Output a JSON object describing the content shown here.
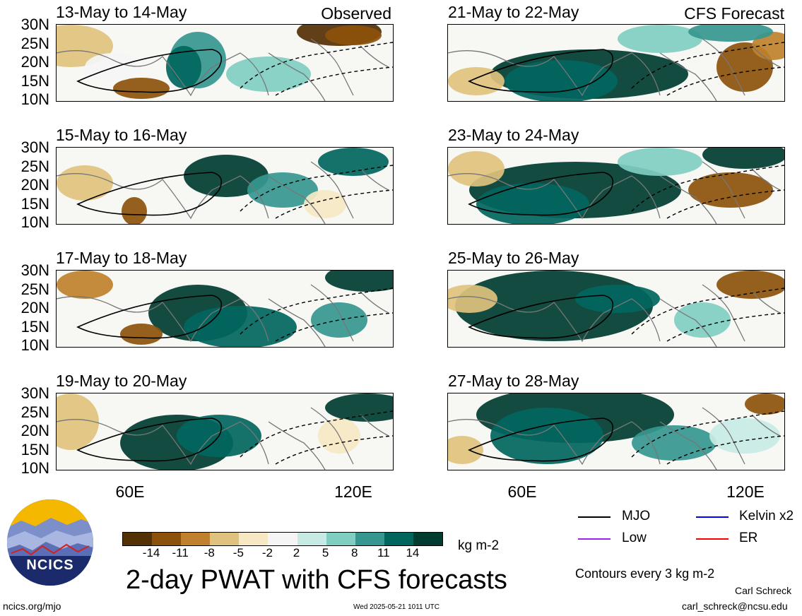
{
  "panels": [
    {
      "title": "13-May to 14-May",
      "tag": "Observed"
    },
    {
      "title": "21-May to 22-May",
      "tag": "CFS Forecast"
    },
    {
      "title": "15-May to 16-May",
      "tag": ""
    },
    {
      "title": "23-May to 24-May",
      "tag": ""
    },
    {
      "title": "17-May to 18-May",
      "tag": ""
    },
    {
      "title": "25-May to 26-May",
      "tag": ""
    },
    {
      "title": "19-May to 20-May",
      "tag": ""
    },
    {
      "title": "27-May to 28-May",
      "tag": ""
    }
  ],
  "y_ticks": [
    "30N",
    "25N",
    "20N",
    "15N",
    "10N"
  ],
  "x_ticks": [
    "60E",
    "120E"
  ],
  "colorbar": {
    "labels": [
      "-14",
      "-11",
      "-8",
      "-5",
      "-2",
      "2",
      "5",
      "8",
      "11",
      "14"
    ],
    "colors": [
      "#543005",
      "#8c510a",
      "#bf812d",
      "#dfc27d",
      "#f6e8c3",
      "#f5f5f5",
      "#c7eae5",
      "#80cdc1",
      "#35978f",
      "#01665e",
      "#003c30"
    ],
    "units": "kg m-2"
  },
  "title": "2-day PWAT with CFS forecasts",
  "legend": [
    {
      "label": "MJO",
      "color": "#000000"
    },
    {
      "label": "Kelvin x2",
      "color": "#0000ff"
    },
    {
      "label": "Low",
      "color": "#a020f0"
    },
    {
      "label": "ER",
      "color": "#ff0000"
    }
  ],
  "contour_note": "Contours every 3 kg m-2",
  "logo_text": "NCICS",
  "footer": {
    "url": "ncics.org/mjo",
    "timestamp": "Wed 2025-05-21 1011 UTC",
    "author": "Carl Schreck",
    "email": "carl_schreck@ncsu.edu"
  }
}
